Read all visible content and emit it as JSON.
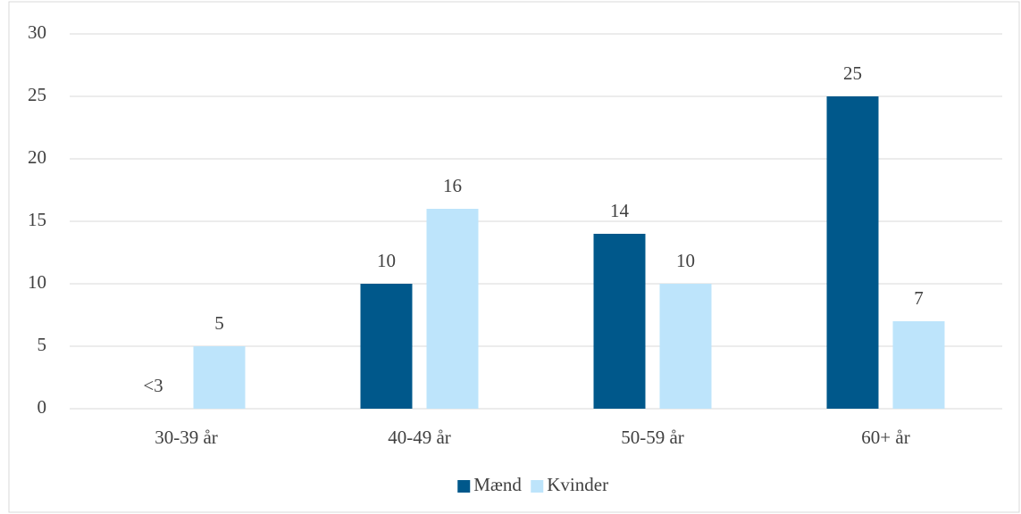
{
  "chart_data": {
    "type": "bar",
    "categories": [
      "30-39 år",
      "40-49 år",
      "50-59 år",
      "60+ år"
    ],
    "series": [
      {
        "name": "Mænd",
        "color": "#00588b",
        "values": [
          null,
          10,
          14,
          25
        ],
        "value_labels": [
          "<3",
          "10",
          "14",
          "25"
        ]
      },
      {
        "name": "Kvinder",
        "color": "#bde4fb",
        "values": [
          5,
          16,
          10,
          7
        ]
      }
    ],
    "ylim": [
      0,
      30
    ],
    "yticks": [
      0,
      5,
      10,
      15,
      20,
      25,
      30
    ],
    "grid": true,
    "legend": "bottom"
  }
}
